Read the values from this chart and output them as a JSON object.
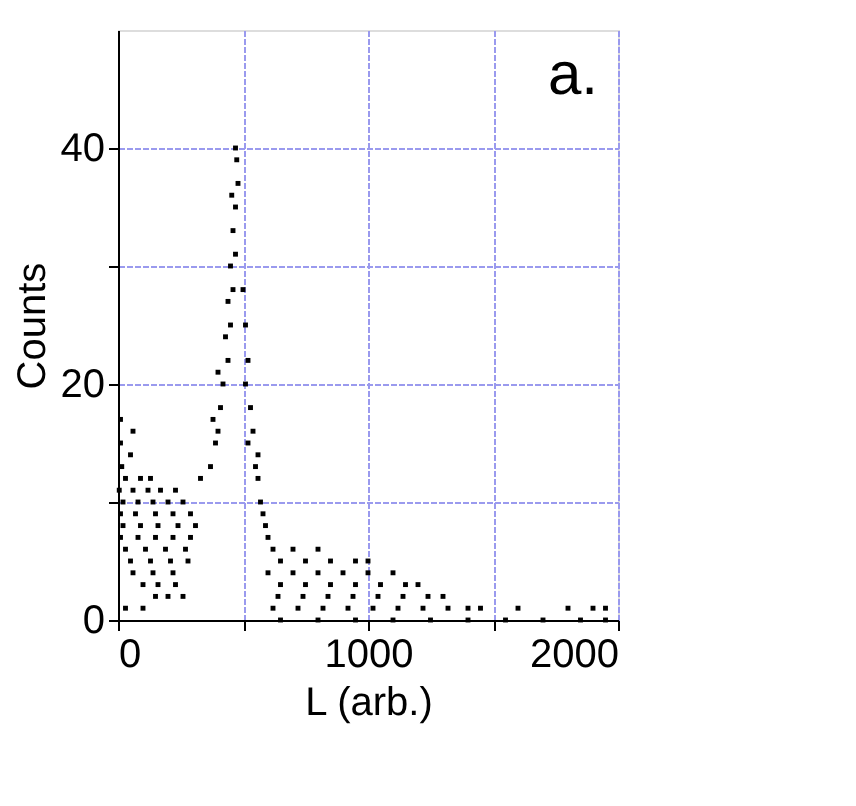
{
  "chart_data": {
    "type": "scatter",
    "xlabel": "L (arb.)",
    "ylabel": "Counts",
    "annotations": [
      "a."
    ],
    "xlim": [
      0,
      2000
    ],
    "ylim": [
      0,
      50
    ],
    "xticks": [
      0,
      {
        "value": 500,
        "label": null
      },
      1000,
      {
        "value": 1500,
        "label": null
      },
      2000
    ],
    "yticks": [
      0,
      {
        "value": 10,
        "label": null
      },
      20,
      {
        "value": 30,
        "label": null
      },
      40
    ],
    "grid": true,
    "marker": "square",
    "series": [
      {
        "color": "#000000",
        "x": [
          10,
          60,
          10,
          50,
          15,
          30,
          90,
          130,
          5,
          60,
          120,
          170,
          230,
          20,
          80,
          140,
          200,
          260,
          10,
          70,
          150,
          220,
          290,
          20,
          90,
          160,
          240,
          310,
          10,
          80,
          150,
          220,
          290,
          30,
          110,
          190,
          270,
          50,
          130,
          210,
          280,
          60,
          140,
          220,
          100,
          160,
          230,
          150,
          200,
          260,
          30,
          100,
          330,
          370,
          390,
          400,
          380,
          410,
          420,
          400,
          440,
          430,
          450,
          440,
          460,
          450,
          470,
          460,
          470,
          455,
          480,
          475,
          470,
          500,
          510,
          520,
          510,
          530,
          540,
          520,
          560,
          550,
          560,
          570,
          580,
          590,
          600,
          620,
          700,
          800,
          650,
          750,
          850,
          950,
          1000,
          600,
          700,
          800,
          900,
          1000,
          1100,
          650,
          750,
          850,
          950,
          1050,
          1150,
          1200,
          640,
          740,
          840,
          940,
          1040,
          1140,
          1240,
          1300,
          620,
          720,
          820,
          920,
          1020,
          1120,
          1220,
          1320,
          1400,
          1450,
          1600,
          1800,
          1900,
          1950,
          650,
          800,
          950,
          1100,
          1250,
          1400,
          1550,
          1700,
          1850,
          1950
        ],
        "values": [
          17,
          16,
          15,
          14,
          13,
          12,
          12,
          12,
          11,
          11,
          11,
          11,
          11,
          10,
          10,
          10,
          10,
          10,
          9,
          9,
          9,
          9,
          9,
          8,
          8,
          8,
          8,
          8,
          7,
          7,
          7,
          7,
          7,
          6,
          6,
          6,
          6,
          5,
          5,
          5,
          5,
          4,
          4,
          4,
          3,
          3,
          3,
          2,
          2,
          2,
          1,
          1,
          12,
          13,
          15,
          16,
          17,
          18,
          20,
          21,
          22,
          24,
          25,
          27,
          28,
          30,
          31,
          33,
          35,
          36,
          37,
          39,
          40,
          28,
          25,
          22,
          20,
          18,
          16,
          15,
          14,
          13,
          12,
          10,
          9,
          8,
          7,
          6,
          6,
          6,
          5,
          5,
          5,
          5,
          5,
          4,
          4,
          4,
          4,
          4,
          4,
          3,
          3,
          3,
          3,
          3,
          3,
          3,
          2,
          2,
          2,
          2,
          2,
          2,
          2,
          2,
          1,
          1,
          1,
          1,
          1,
          1,
          1,
          1,
          1,
          1,
          1,
          1,
          1,
          1,
          0,
          0,
          0,
          0,
          0,
          0,
          0,
          0,
          0,
          0
        ]
      }
    ]
  }
}
